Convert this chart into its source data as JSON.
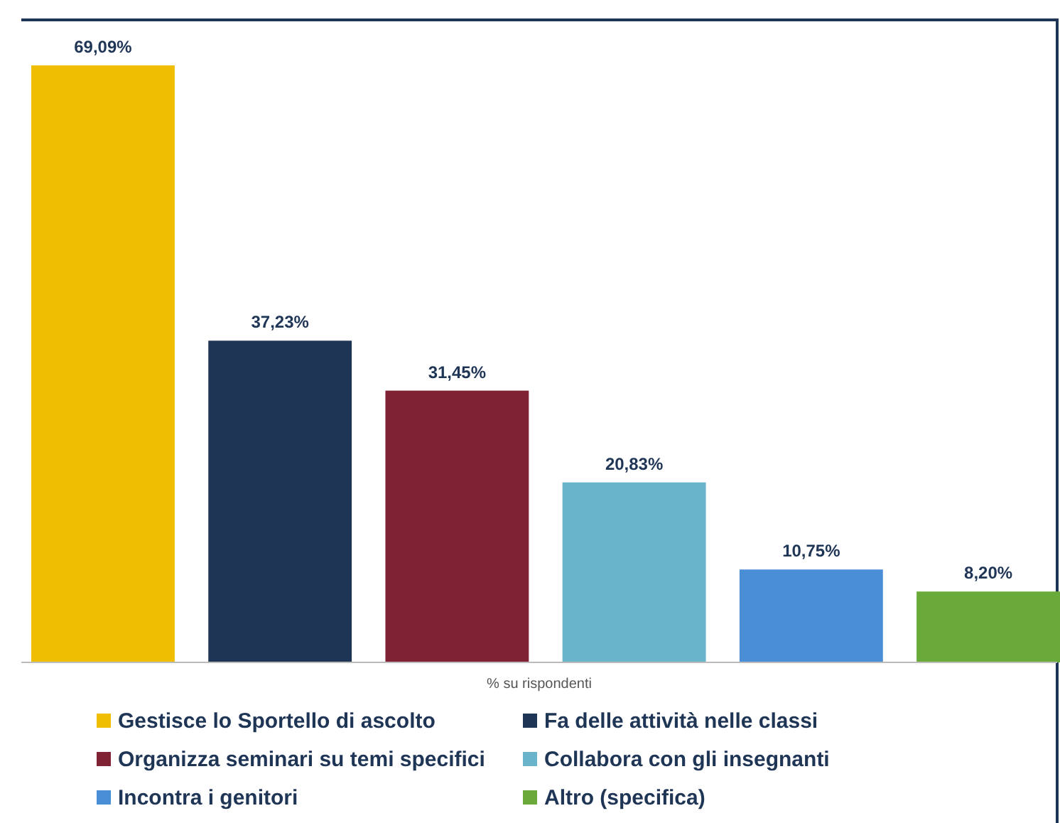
{
  "chart_data": {
    "type": "bar",
    "xlabel": "% su rispondenti",
    "categories": [
      null
    ],
    "legend": "bottom",
    "series": [
      {
        "name": "Gestisce lo Sportello di ascolto",
        "color": "#f0be00",
        "values": [
          69.09
        ],
        "value_labels": [
          "69,09%"
        ]
      },
      {
        "name": "Fa delle attività nelle classi",
        "color": "#1f3556",
        "values": [
          37.23
        ],
        "value_labels": [
          "37,23%"
        ]
      },
      {
        "name": "Organizza seminari su temi specifici",
        "color": "#7f2233",
        "values": [
          31.45
        ],
        "value_labels": [
          "31,45%"
        ]
      },
      {
        "name": "Collabora con gli insegnanti",
        "color": "#6ab4cb",
        "values": [
          20.83
        ],
        "value_labels": [
          "20,83%"
        ]
      },
      {
        "name": "Incontra i genitori",
        "color": "#4a8fd6",
        "values": [
          10.75
        ],
        "value_labels": [
          "10,75%"
        ]
      },
      {
        "name": "Altro (specifica)",
        "color": "#6aaa3a",
        "values": [
          8.2
        ],
        "value_labels": [
          "8,20%"
        ]
      }
    ]
  }
}
